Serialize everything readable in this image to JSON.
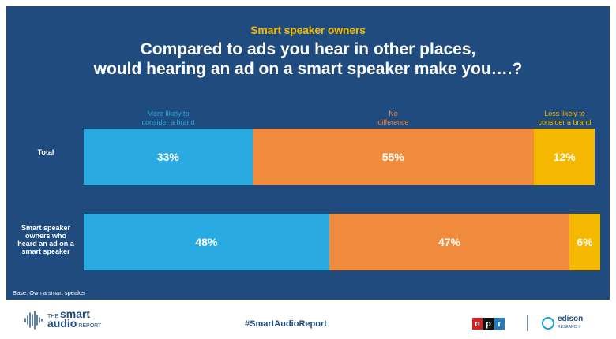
{
  "header": {
    "subtitle": "Smart speaker owners",
    "title_line1": "Compared to ads you hear in other places,",
    "title_line2": "would hearing an ad on a smart speaker make you….?"
  },
  "legend": [
    {
      "line1": "More likely to",
      "line2": "consider a brand",
      "color": "#29aae1"
    },
    {
      "line1": "No",
      "line2": "difference",
      "color": "#f08a3c"
    },
    {
      "line1": "Less likely to",
      "line2": "consider a brand",
      "color": "#f5b800"
    }
  ],
  "rows": [
    {
      "label_lines": [
        "Total"
      ],
      "values": [
        "33%",
        "55%",
        "12%"
      ]
    },
    {
      "label_lines": [
        "Smart speaker",
        "owners who",
        "heard an ad on a",
        "smart speaker"
      ],
      "values": [
        "48%",
        "47%",
        "6%"
      ]
    }
  ],
  "base_note": "Base: Own a smart speaker",
  "footer": {
    "hashtag": "#SmartAudioReport",
    "sar_the": "THE",
    "sar_smart": "smart",
    "sar_audio": "audio",
    "sar_report": "REPORT",
    "npr_letters": [
      "n",
      "p",
      "r"
    ],
    "npr_colors": [
      "#d62021",
      "#111111",
      "#237bbd"
    ],
    "edison_name": "edison",
    "edison_sub": "RESEARCH"
  },
  "chart_data": {
    "type": "bar",
    "orientation": "horizontal",
    "stacked": true,
    "categories": [
      "Total",
      "Smart speaker owners who heard an ad on a smart speaker"
    ],
    "series": [
      {
        "name": "More likely to consider a brand",
        "values": [
          33,
          48
        ],
        "color": "#29aae1"
      },
      {
        "name": "No difference",
        "values": [
          55,
          47
        ],
        "color": "#f08a3c"
      },
      {
        "name": "Less likely to consider a brand",
        "values": [
          12,
          6
        ],
        "color": "#f5b800"
      }
    ],
    "title": "Compared to ads you hear in other places, would hearing an ad on a smart speaker make you….?",
    "subtitle": "Smart speaker owners",
    "xlim": [
      0,
      101
    ],
    "legend_placement": "top",
    "grid": false
  }
}
